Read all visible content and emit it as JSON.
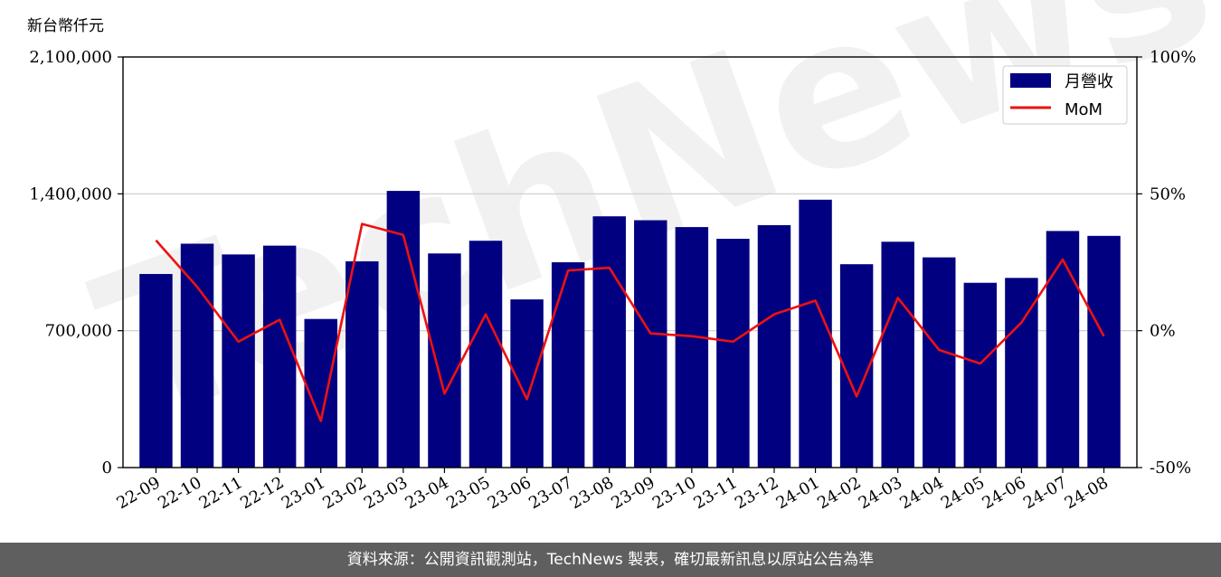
{
  "chart_data": {
    "type": "bar",
    "unit_label": "新台幣仟元",
    "categories": [
      "22-09",
      "22-10",
      "22-11",
      "22-12",
      "23-01",
      "23-02",
      "23-03",
      "23-04",
      "23-05",
      "23-06",
      "23-07",
      "23-08",
      "23-09",
      "23-10",
      "23-11",
      "23-12",
      "24-01",
      "24-02",
      "24-03",
      "24-04",
      "24-05",
      "24-06",
      "24-07",
      "24-08"
    ],
    "series": [
      {
        "name": "月營收",
        "kind": "bar",
        "axis": "left",
        "color": "#000080",
        "values": [
          990000,
          1145000,
          1090000,
          1135000,
          760000,
          1055000,
          1415000,
          1095000,
          1160000,
          860000,
          1050000,
          1285000,
          1265000,
          1230000,
          1170000,
          1240000,
          1370000,
          1040000,
          1155000,
          1075000,
          945000,
          970000,
          1210000,
          1185000
        ]
      },
      {
        "name": "MoM",
        "kind": "line",
        "axis": "right",
        "color": "#ee1111",
        "values": [
          33,
          16,
          -4,
          4,
          -33,
          39,
          35,
          -23,
          6,
          -25,
          22,
          23,
          -1,
          -2,
          -4,
          6,
          11,
          -24,
          12,
          -7,
          -12,
          3,
          26,
          -2
        ]
      }
    ],
    "y_left": {
      "min": 0,
      "max": 2100000,
      "ticks": [
        0,
        700000,
        1400000,
        2100000
      ],
      "tick_labels": [
        "0",
        "700,000",
        "1,400,000",
        "2,100,000"
      ]
    },
    "y_right": {
      "min": -50,
      "max": 100,
      "ticks": [
        -50,
        0,
        50,
        100
      ],
      "tick_labels": [
        "-50%",
        "0%",
        "50%",
        "100%"
      ]
    },
    "grid": "horizontal",
    "legend_position": "top-right"
  },
  "watermark": "TechNews",
  "footer_text": "資料來源：公開資訊觀測站，TechNews 製表，確切最新訊息以原站公告為準"
}
